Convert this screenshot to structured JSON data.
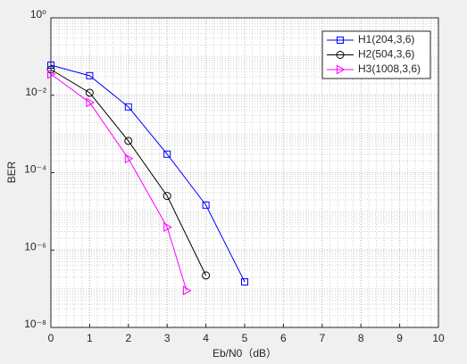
{
  "chart_data": {
    "type": "line",
    "xlabel": "Eb/N0（dB）",
    "ylabel": "BER",
    "xlim": [
      0,
      10
    ],
    "xticks": [
      0,
      1,
      2,
      3,
      4,
      5,
      6,
      7,
      8,
      9,
      10
    ],
    "ylim": [
      1e-08,
      1
    ],
    "log_y": true,
    "yticks": [
      {
        "value": 1,
        "label": "10⁰"
      },
      {
        "value": 0.01,
        "label": "10⁻²"
      },
      {
        "value": 0.0001,
        "label": "10⁻⁴"
      },
      {
        "value": 1e-06,
        "label": "10⁻⁶"
      },
      {
        "value": 1e-08,
        "label": "10⁻⁸"
      }
    ],
    "grid": true,
    "minor_grid": true,
    "legend": "upper right",
    "series": [
      {
        "name": "H1(204,3,6)",
        "color": "#0000ff",
        "marker": "square",
        "x": [
          0,
          1,
          2,
          3,
          4,
          5
        ],
        "values": [
          0.06,
          0.032,
          0.005,
          0.0003,
          1.45e-05,
          1.5e-07
        ]
      },
      {
        "name": "H2(504,3,6)",
        "color": "#000000",
        "marker": "circle",
        "x": [
          0,
          1,
          2,
          3,
          4
        ],
        "values": [
          0.046,
          0.0116,
          0.00066,
          2.5e-05,
          2.2e-07
        ]
      },
      {
        "name": "H3(1008,3,6)",
        "color": "#ff00ff",
        "marker": "triangle-right",
        "x": [
          0,
          1,
          2,
          3,
          3.5
        ],
        "values": [
          0.035,
          0.0065,
          0.00023,
          3.9e-06,
          9e-08
        ]
      }
    ]
  }
}
